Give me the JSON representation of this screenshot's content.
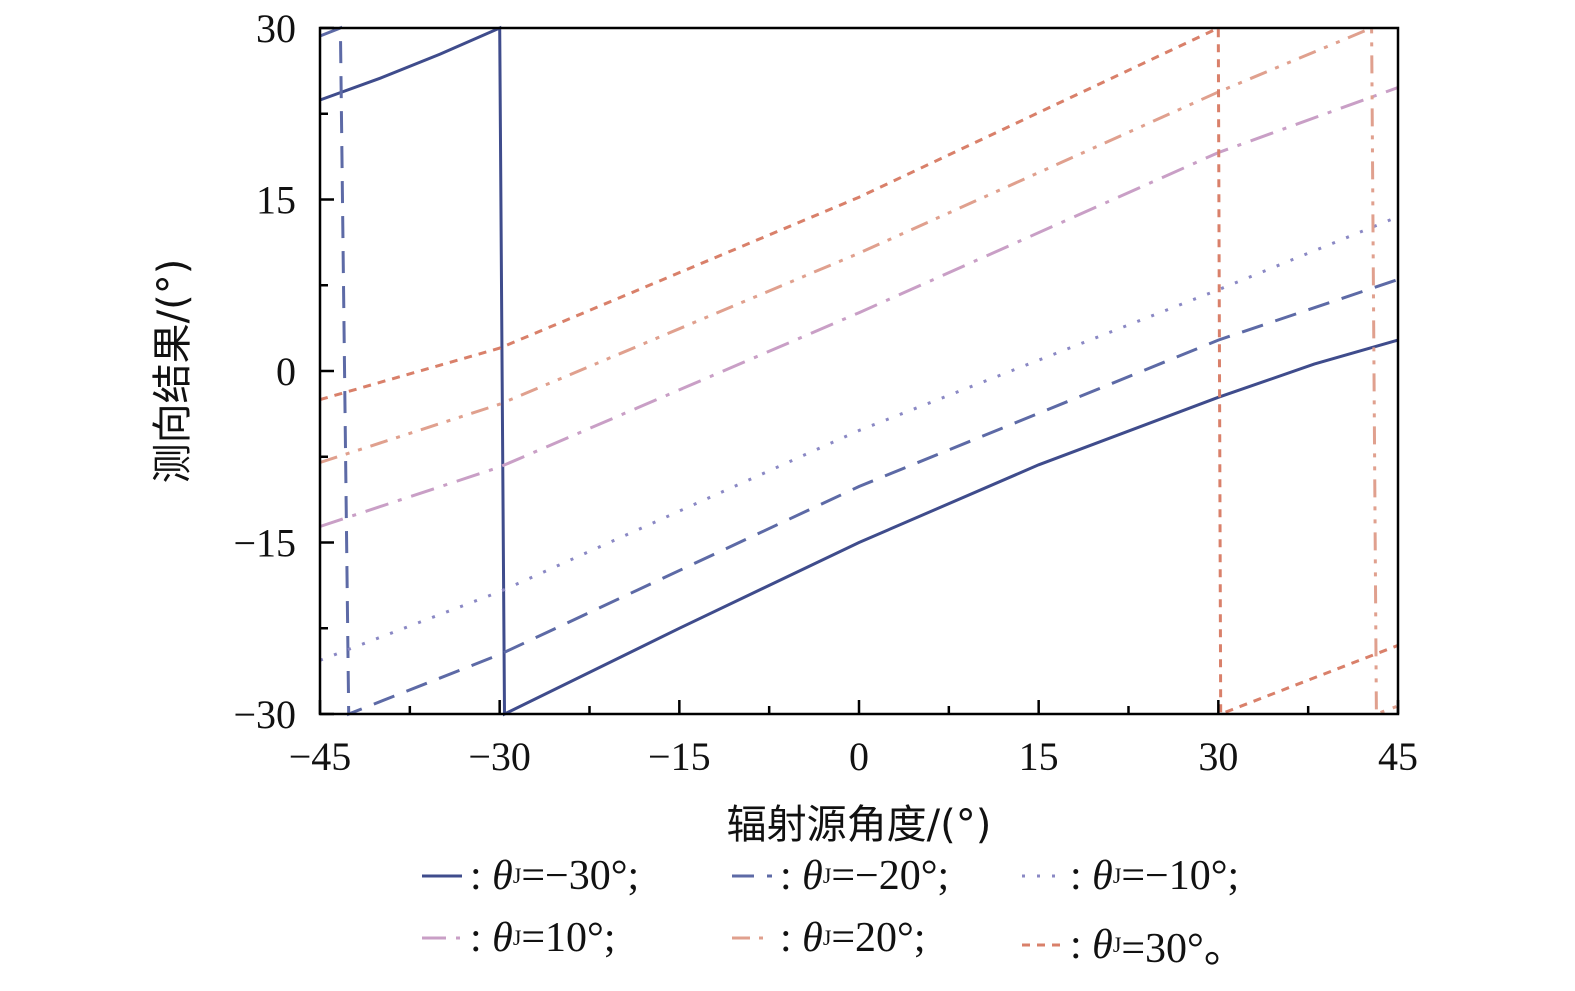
{
  "chart_data": {
    "type": "line",
    "xlabel": "辐射源角度/(°)",
    "ylabel": "测向结果/(°)",
    "xlim": [
      -45,
      45
    ],
    "ylim": [
      -30,
      30
    ],
    "xticks": [
      -45,
      -30,
      -15,
      0,
      15,
      30,
      45
    ],
    "yticks": [
      -30,
      -15,
      0,
      15,
      30
    ],
    "xtick_labels": [
      "−45",
      "−30",
      "−15",
      "0",
      "15",
      "30",
      "45"
    ],
    "ytick_labels": [
      "−30",
      "−15",
      "0",
      "15",
      "30"
    ],
    "minor_tick_step": 7.5,
    "grid": false,
    "legend_placement": "bottom",
    "series": [
      {
        "name": "θJ=−30°",
        "prefix": ": ",
        "theta": "θ",
        "sub": "J",
        "suffix": "=−30°;",
        "color": "#3f4c8c",
        "style": "solid",
        "points": [
          [
            -45,
            23.7
          ],
          [
            -40,
            25.6
          ],
          [
            -35,
            27.7
          ],
          [
            -30,
            30
          ],
          [
            -29.6,
            -30
          ],
          [
            -15,
            -22.5
          ],
          [
            0,
            -15
          ],
          [
            15,
            -8.2
          ],
          [
            30,
            -2.3
          ],
          [
            38,
            0.6
          ],
          [
            45,
            2.7
          ]
        ]
      },
      {
        "name": "θJ=−20°",
        "prefix": ": ",
        "theta": "θ",
        "sub": "J",
        "suffix": "=−20°;",
        "color": "#5d6aa6",
        "style": "dashed",
        "points": [
          [
            -45,
            29.3
          ],
          [
            -43.3,
            30
          ],
          [
            -42.6,
            -30
          ],
          [
            -30,
            -24.8
          ],
          [
            0,
            -10.1
          ],
          [
            30,
            2.7
          ],
          [
            45,
            8.0
          ]
        ]
      },
      {
        "name": "θJ=−10°",
        "prefix": ": ",
        "theta": "θ",
        "sub": "J",
        "suffix": "=−10°;",
        "color": "#8a88c4",
        "style": "dotted",
        "points": [
          [
            -45,
            -25.3
          ],
          [
            -30,
            -19.3
          ],
          [
            0,
            -5.2
          ],
          [
            30,
            7.1
          ],
          [
            45,
            13.5
          ]
        ]
      },
      {
        "name": "θJ=10°",
        "prefix": ": ",
        "theta": "θ",
        "sub": "J",
        "suffix": "=10°;",
        "color": "#c99fc6",
        "style": "dashdot",
        "points": [
          [
            -45,
            -13.6
          ],
          [
            -30,
            -8.4
          ],
          [
            0,
            5.1
          ],
          [
            30,
            19.1
          ],
          [
            45,
            24.8
          ]
        ]
      },
      {
        "name": "θJ=20°",
        "prefix": ": ",
        "theta": "θ",
        "sub": "J",
        "suffix": "=20°;",
        "color": "#e0a08e",
        "style": "dashdotdot",
        "points": [
          [
            -45,
            -8.0
          ],
          [
            -30,
            -2.9
          ],
          [
            0,
            10.3
          ],
          [
            30,
            24.4
          ],
          [
            42.8,
            30
          ],
          [
            43.2,
            -30
          ],
          [
            45,
            -29.3
          ]
        ]
      },
      {
        "name": "θJ=30°",
        "prefix": ": ",
        "theta": "θ",
        "sub": "J",
        "suffix": "=30°。",
        "color": "#d9806a",
        "style": "shortdash",
        "points": [
          [
            -45,
            -2.5
          ],
          [
            -30,
            2.0
          ],
          [
            0,
            15.2
          ],
          [
            30,
            30
          ],
          [
            30.2,
            -30
          ],
          [
            45,
            -24.0
          ]
        ]
      }
    ]
  }
}
